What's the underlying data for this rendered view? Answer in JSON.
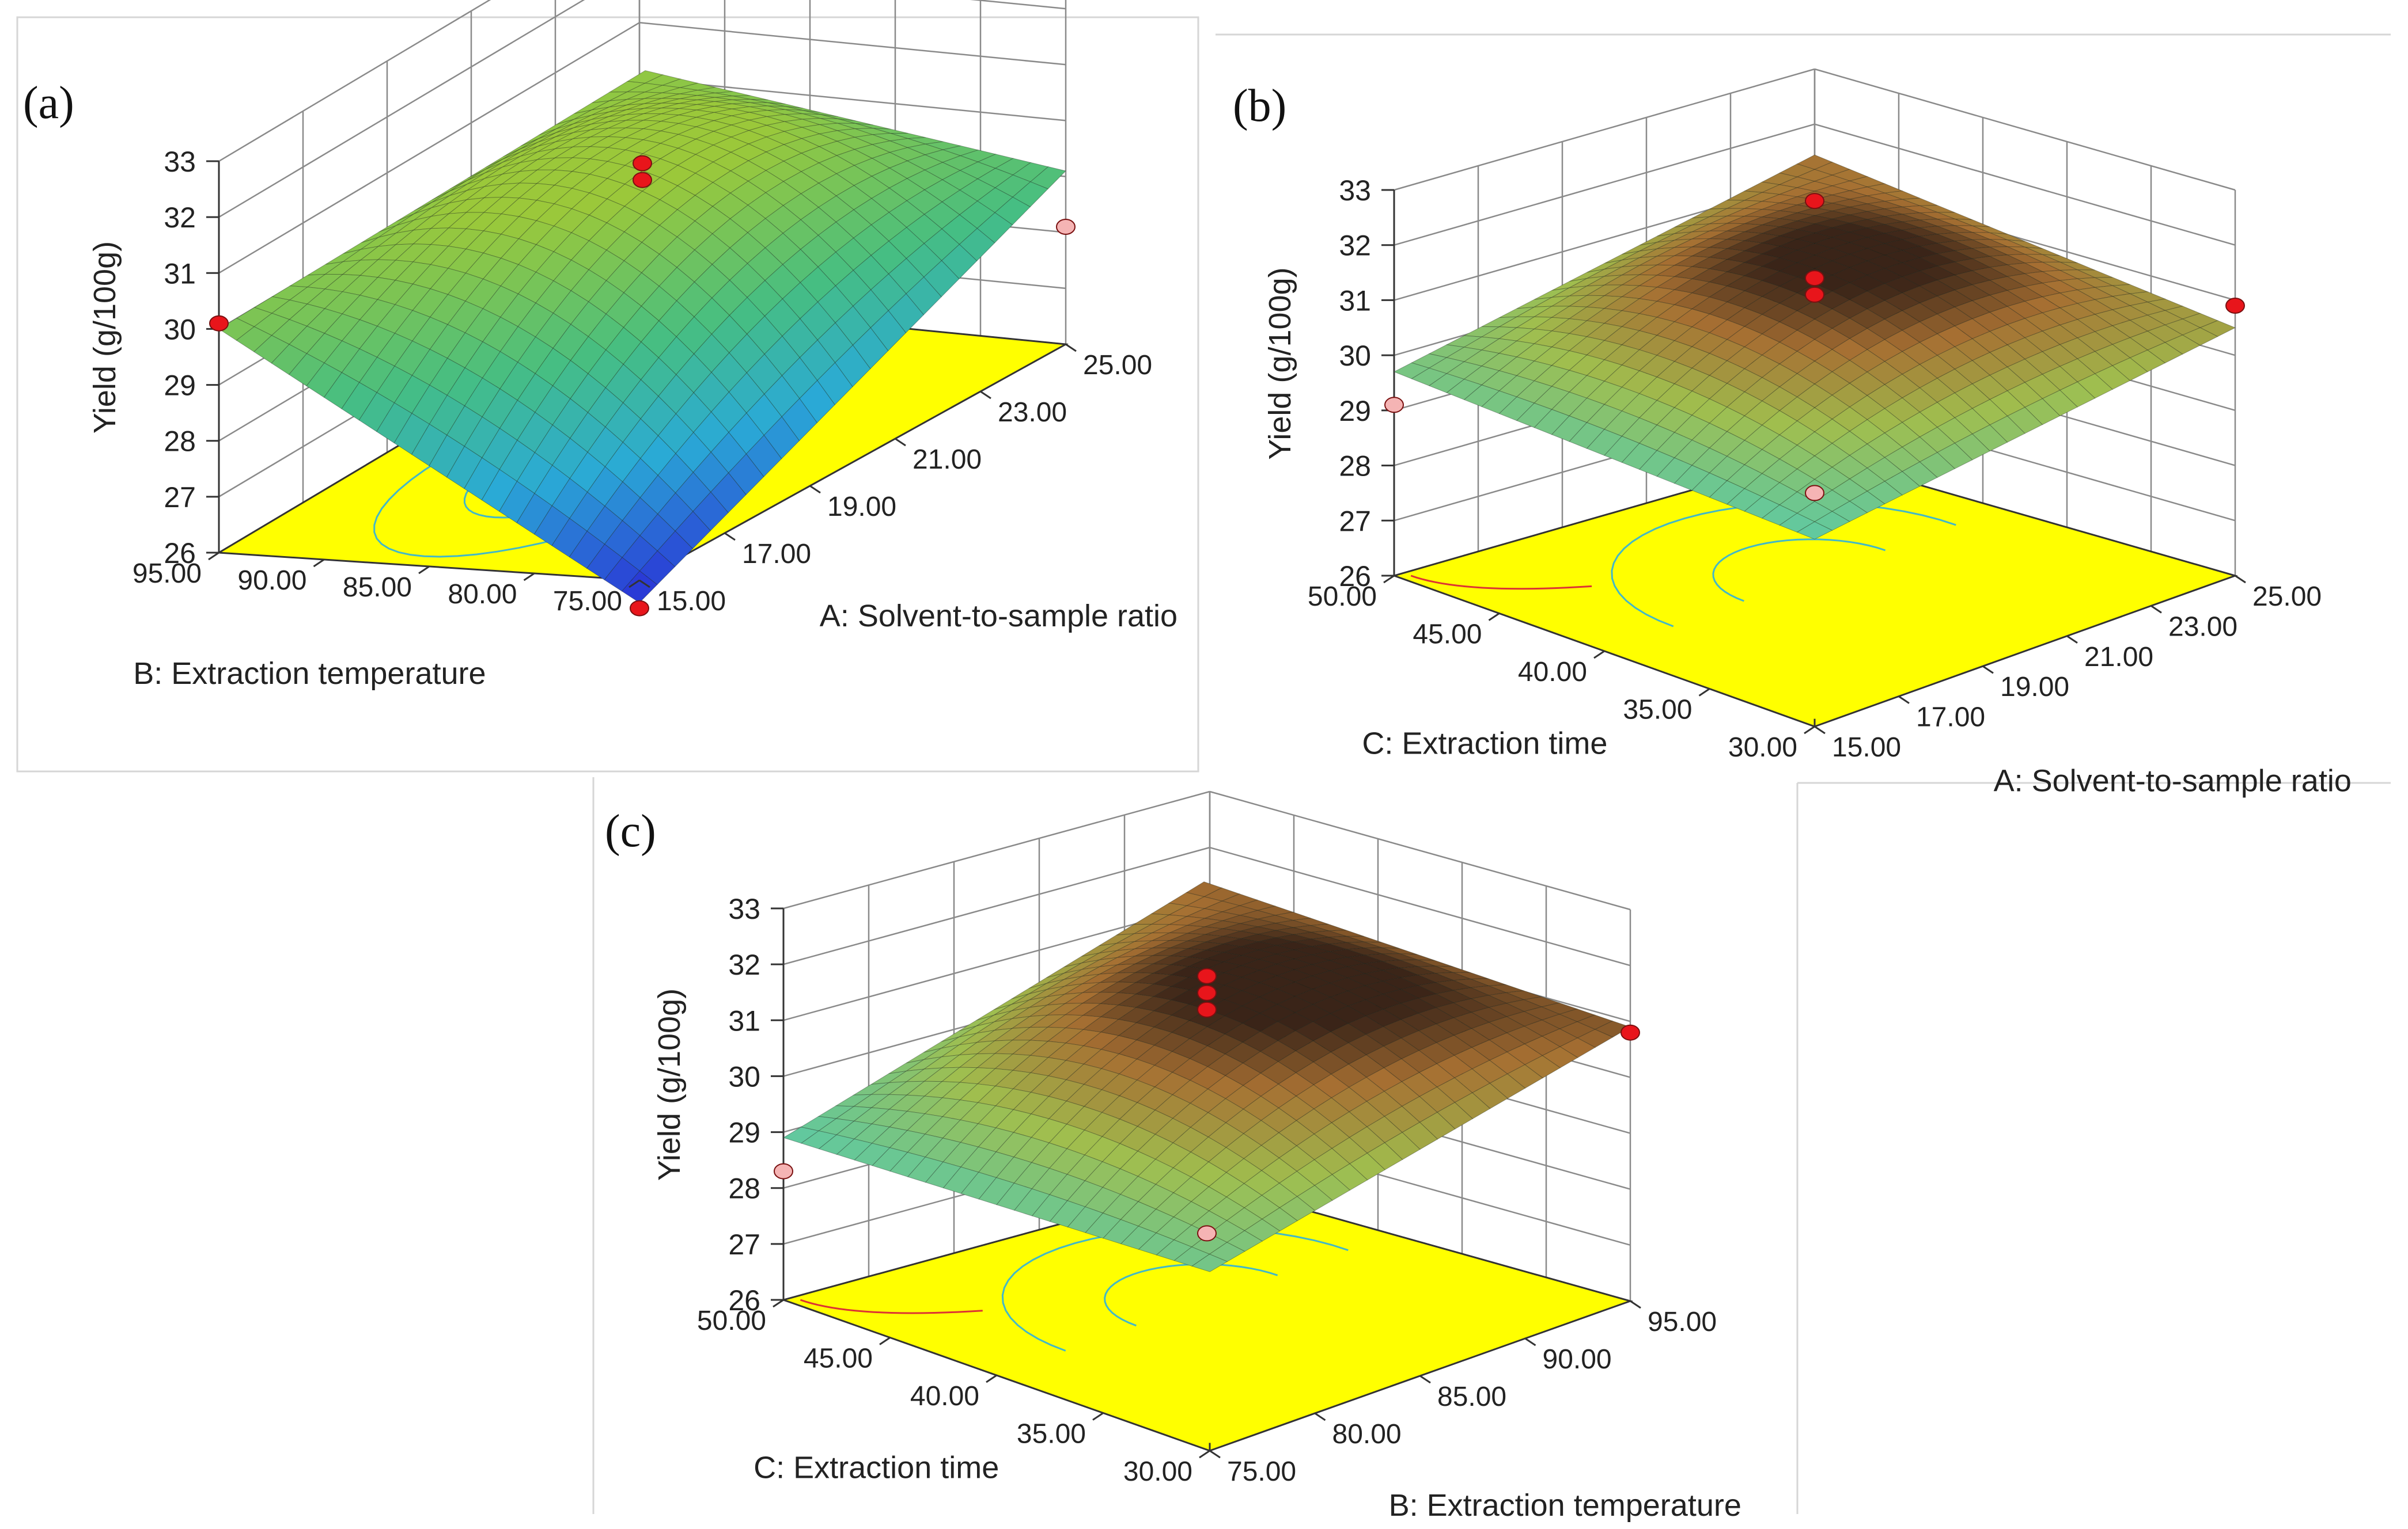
{
  "figure": {
    "panel_labels": [
      "(a)",
      "(b)",
      "(c)"
    ]
  },
  "colors": {
    "floor": "#ffff00",
    "grid": "#8a8a8a",
    "axis": "#333333",
    "point_red": "#e8151b",
    "point_pink": "#f5b4b4",
    "contour_cyan": "#42b8c8",
    "contour_red": "#dd3333",
    "frame": "#cfcfcf"
  },
  "chart_data": [
    {
      "id": "a",
      "type": "surface3d",
      "panel_label": "(a)",
      "zlabel": "Yield (g/100g)",
      "zlim": [
        26,
        33
      ],
      "z_ticks": [
        "26",
        "27",
        "28",
        "29",
        "30",
        "31",
        "32",
        "33"
      ],
      "x_axis": {
        "label": "A: Solvent-to-sample ratio",
        "range": [
          15,
          25
        ],
        "ticks": [
          "15.00",
          "17.00",
          "19.00",
          "21.00",
          "23.00",
          "25.00"
        ]
      },
      "y_axis": {
        "label": "B: Extraction temperature",
        "range": [
          75,
          95
        ],
        "ticks": [
          "75.00",
          "80.00",
          "85.00",
          "90.00",
          "95.00"
        ]
      },
      "surface_colormap": "blue-green-yellow",
      "surface_corners": {
        "front": 25.6,
        "right": 29.1,
        "back": 30.4,
        "left": 30.0,
        "center": 30.6
      },
      "design_points": [
        {
          "x": 20,
          "y": 85,
          "z": 31.1,
          "style": "red"
        },
        {
          "x": 20,
          "y": 85,
          "z": 30.8,
          "style": "red"
        },
        {
          "x": 15,
          "y": 95,
          "z": 30.1,
          "style": "red"
        },
        {
          "x": 25,
          "y": 75,
          "z": 28.1,
          "style": "pink"
        },
        {
          "x": 15,
          "y": 75,
          "z": 25.5,
          "style": "red"
        }
      ]
    },
    {
      "id": "b",
      "type": "surface3d",
      "panel_label": "(b)",
      "zlabel": "Yield (g/100g)",
      "zlim": [
        26,
        33
      ],
      "z_ticks": [
        "26",
        "27",
        "28",
        "29",
        "30",
        "31",
        "32",
        "33"
      ],
      "x_axis": {
        "label": "A: Solvent-to-sample ratio",
        "range": [
          15,
          25
        ],
        "ticks": [
          "15.00",
          "17.00",
          "19.00",
          "21.00",
          "23.00",
          "25.00"
        ]
      },
      "y_axis": {
        "label": "C: Extraction time",
        "range": [
          30,
          50
        ],
        "ticks": [
          "30.00",
          "35.00",
          "40.00",
          "45.00",
          "50.00"
        ]
      },
      "surface_colormap": "green-yellow-brown",
      "surface_corners": {
        "front": 29.4,
        "right": 30.5,
        "back": 30.9,
        "left": 29.7,
        "center": 31.3
      },
      "design_points": [
        {
          "x": 20,
          "y": 40,
          "z": 32.8,
          "style": "red"
        },
        {
          "x": 20,
          "y": 40,
          "z": 31.4,
          "style": "red"
        },
        {
          "x": 20,
          "y": 40,
          "z": 31.1,
          "style": "red"
        },
        {
          "x": 25,
          "y": 30,
          "z": 30.9,
          "style": "red"
        },
        {
          "x": 15,
          "y": 50,
          "z": 29.1,
          "style": "pink"
        },
        {
          "x": 20,
          "y": 40,
          "z": 27.5,
          "style": "pink"
        }
      ]
    },
    {
      "id": "c",
      "type": "surface3d",
      "panel_label": "(c)",
      "zlabel": "Yield (g/100g)",
      "zlim": [
        26,
        33
      ],
      "z_ticks": [
        "26",
        "27",
        "28",
        "29",
        "30",
        "31",
        "32",
        "33"
      ],
      "x_axis": {
        "label": "B: Extraction temperature",
        "range": [
          75,
          95
        ],
        "ticks": [
          "75.00",
          "80.00",
          "85.00",
          "90.00",
          "95.00"
        ]
      },
      "y_axis": {
        "label": "C: Extraction time",
        "range": [
          30,
          50
        ],
        "ticks": [
          "30.00",
          "35.00",
          "40.00",
          "45.00",
          "50.00"
        ]
      },
      "surface_colormap": "green-yellow-brown",
      "surface_corners": {
        "front": 29.2,
        "right": 30.9,
        "back": 30.8,
        "left": 28.9,
        "center": 31.2
      },
      "design_points": [
        {
          "x": 85,
          "y": 40,
          "z": 31.8,
          "style": "red"
        },
        {
          "x": 85,
          "y": 40,
          "z": 31.5,
          "style": "red"
        },
        {
          "x": 85,
          "y": 40,
          "z": 31.2,
          "style": "red"
        },
        {
          "x": 95,
          "y": 30,
          "z": 30.8,
          "style": "red"
        },
        {
          "x": 75,
          "y": 50,
          "z": 28.3,
          "style": "pink"
        },
        {
          "x": 85,
          "y": 40,
          "z": 27.2,
          "style": "pink"
        }
      ]
    }
  ]
}
